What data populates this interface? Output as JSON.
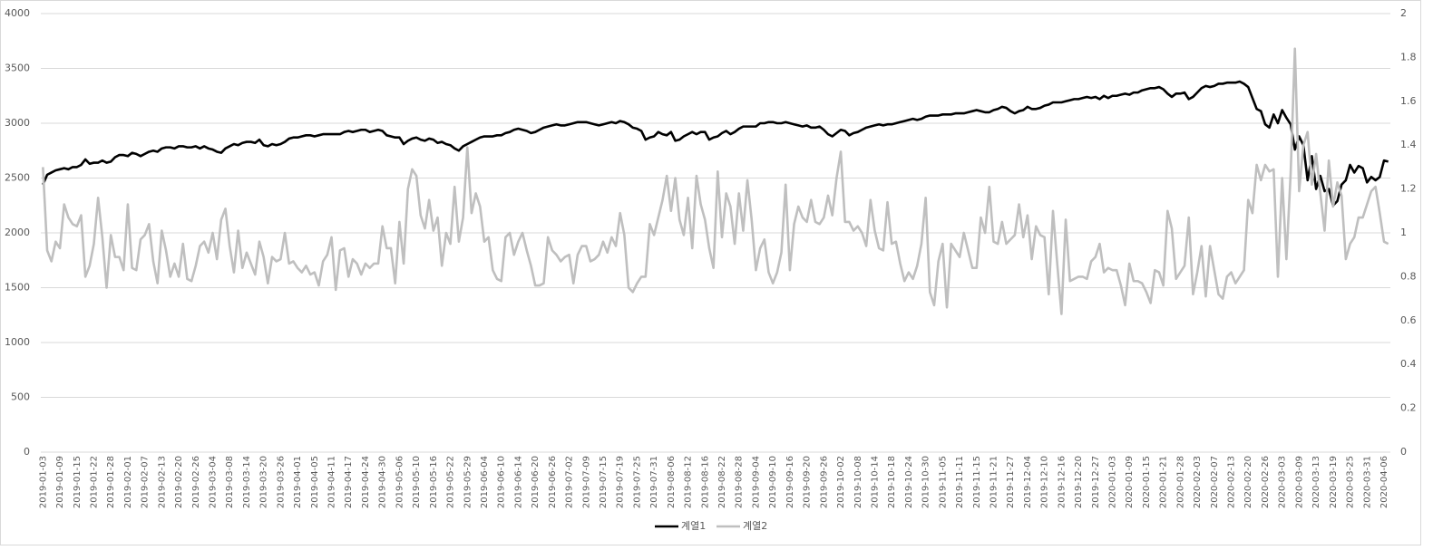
{
  "chart_data": {
    "type": "line",
    "categories": [
      "2019-01-03",
      null,
      null,
      null,
      "2019-01-09",
      null,
      null,
      null,
      "2019-01-15",
      null,
      null,
      null,
      "2019-01-22",
      null,
      null,
      null,
      "2019-01-28",
      null,
      null,
      null,
      "2019-02-01",
      null,
      null,
      null,
      "2019-02-07",
      null,
      null,
      null,
      "2019-02-13",
      null,
      null,
      null,
      "2019-02-20",
      null,
      null,
      null,
      "2019-02-26",
      null,
      null,
      null,
      "2019-03-04",
      null,
      null,
      null,
      "2019-03-08",
      null,
      null,
      null,
      "2019-03-14",
      null,
      null,
      null,
      "2019-03-20",
      null,
      null,
      null,
      "2019-03-26",
      null,
      null,
      null,
      "2019-04-01",
      null,
      null,
      null,
      "2019-04-05",
      null,
      null,
      null,
      "2019-04-11",
      null,
      null,
      null,
      "2019-04-17",
      null,
      null,
      null,
      "2019-04-24",
      null,
      null,
      null,
      "2019-04-30",
      null,
      null,
      null,
      "2019-05-06",
      null,
      null,
      null,
      "2019-05-10",
      null,
      null,
      null,
      "2019-05-16",
      null,
      null,
      null,
      "2019-05-22",
      null,
      null,
      null,
      "2019-05-29",
      null,
      null,
      null,
      "2019-06-04",
      null,
      null,
      null,
      "2019-06-10",
      null,
      null,
      null,
      "2019-06-14",
      null,
      null,
      null,
      "2019-06-20",
      null,
      null,
      null,
      "2019-06-26",
      null,
      null,
      null,
      "2019-07-02",
      null,
      null,
      null,
      "2019-07-09",
      null,
      null,
      null,
      "2019-07-15",
      null,
      null,
      null,
      "2019-07-19",
      null,
      null,
      null,
      "2019-07-25",
      null,
      null,
      null,
      "2019-07-31",
      null,
      null,
      null,
      "2019-08-06",
      null,
      null,
      null,
      "2019-08-12",
      null,
      null,
      null,
      "2019-08-16",
      null,
      null,
      null,
      "2019-08-22",
      null,
      null,
      null,
      "2019-08-28",
      null,
      null,
      null,
      "2019-09-04",
      null,
      null,
      null,
      "2019-09-10",
      null,
      null,
      null,
      "2019-09-16",
      null,
      null,
      null,
      "2019-09-20",
      null,
      null,
      null,
      "2019-09-26",
      null,
      null,
      null,
      "2019-10-02",
      null,
      null,
      null,
      "2019-10-08",
      null,
      null,
      null,
      "2019-10-14",
      null,
      null,
      null,
      "2019-10-18",
      null,
      null,
      null,
      "2019-10-24",
      null,
      null,
      null,
      "2019-10-30",
      null,
      null,
      null,
      "2019-11-05",
      null,
      null,
      null,
      "2019-11-11",
      null,
      null,
      null,
      "2019-11-15",
      null,
      null,
      null,
      "2019-11-21",
      null,
      null,
      null,
      "2019-11-27",
      null,
      null,
      null,
      "2019-12-04",
      null,
      null,
      null,
      "2019-12-10",
      null,
      null,
      null,
      "2019-12-16",
      null,
      null,
      null,
      "2019-12-20",
      null,
      null,
      null,
      "2019-12-27",
      null,
      null,
      null,
      "2020-01-03",
      null,
      null,
      null,
      "2020-01-09",
      null,
      null,
      null,
      "2020-01-15",
      null,
      null,
      null,
      "2020-01-21",
      null,
      null,
      null,
      "2020-01-28",
      null,
      null,
      null,
      "2020-02-03",
      null,
      null,
      null,
      "2020-02-07",
      null,
      null,
      null,
      "2020-02-13",
      null,
      null,
      null,
      "2020-02-20",
      null,
      null,
      null,
      "2020-02-26",
      null,
      null,
      null,
      "2020-03-03",
      null,
      null,
      null,
      "2020-03-09",
      null,
      null,
      null,
      "2020-03-13",
      null,
      null,
      null,
      "2020-03-19",
      null,
      null,
      null,
      "2020-03-25",
      null,
      null,
      null,
      "2020-03-31",
      null,
      null,
      null,
      "2020-04-06",
      null
    ],
    "series": [
      {
        "name": "계열1",
        "color": "#000000",
        "values": [
          2440,
          2530,
          2550,
          2570,
          2580,
          2590,
          2580,
          2600,
          2600,
          2620,
          2670,
          2630,
          2640,
          2640,
          2660,
          2640,
          2650,
          2690,
          2710,
          2710,
          2700,
          2730,
          2720,
          2700,
          2720,
          2740,
          2750,
          2740,
          2770,
          2780,
          2780,
          2770,
          2790,
          2790,
          2780,
          2780,
          2790,
          2770,
          2790,
          2770,
          2760,
          2740,
          2730,
          2770,
          2790,
          2810,
          2800,
          2820,
          2830,
          2830,
          2820,
          2850,
          2800,
          2790,
          2810,
          2800,
          2810,
          2830,
          2860,
          2870,
          2870,
          2880,
          2890,
          2890,
          2880,
          2890,
          2900,
          2900,
          2900,
          2900,
          2900,
          2920,
          2930,
          2920,
          2930,
          2940,
          2940,
          2920,
          2930,
          2940,
          2930,
          2890,
          2880,
          2870,
          2870,
          2810,
          2840,
          2860,
          2870,
          2850,
          2840,
          2860,
          2850,
          2820,
          2830,
          2810,
          2800,
          2770,
          2750,
          2790,
          2810,
          2830,
          2850,
          2870,
          2880,
          2880,
          2880,
          2890,
          2890,
          2910,
          2920,
          2940,
          2950,
          2940,
          2930,
          2910,
          2920,
          2940,
          2960,
          2970,
          2980,
          2990,
          2980,
          2980,
          2990,
          3000,
          3010,
          3010,
          3010,
          3000,
          2990,
          2980,
          2990,
          3000,
          3010,
          3000,
          3020,
          3010,
          2990,
          2960,
          2950,
          2930,
          2850,
          2870,
          2880,
          2920,
          2900,
          2890,
          2920,
          2840,
          2850,
          2880,
          2900,
          2920,
          2900,
          2920,
          2920,
          2850,
          2870,
          2880,
          2910,
          2930,
          2900,
          2920,
          2950,
          2970,
          2970,
          2970,
          2970,
          3000,
          3000,
          3010,
          3010,
          3000,
          3000,
          3010,
          3000,
          2990,
          2980,
          2970,
          2980,
          2960,
          2960,
          2970,
          2940,
          2900,
          2880,
          2910,
          2940,
          2930,
          2890,
          2910,
          2920,
          2940,
          2960,
          2970,
          2980,
          2990,
          2980,
          2990,
          2990,
          3000,
          3010,
          3020,
          3030,
          3040,
          3030,
          3040,
          3060,
          3070,
          3070,
          3070,
          3080,
          3080,
          3080,
          3090,
          3090,
          3090,
          3100,
          3110,
          3120,
          3110,
          3100,
          3100,
          3120,
          3130,
          3150,
          3140,
          3110,
          3090,
          3110,
          3120,
          3150,
          3130,
          3130,
          3140,
          3160,
          3170,
          3190,
          3190,
          3190,
          3200,
          3210,
          3220,
          3220,
          3230,
          3240,
          3230,
          3240,
          3220,
          3250,
          3230,
          3250,
          3250,
          3260,
          3270,
          3260,
          3280,
          3280,
          3300,
          3310,
          3320,
          3320,
          3330,
          3310,
          3270,
          3240,
          3270,
          3270,
          3280,
          3220,
          3240,
          3280,
          3320,
          3340,
          3330,
          3340,
          3360,
          3360,
          3370,
          3370,
          3370,
          3380,
          3360,
          3330,
          3230,
          3130,
          3110,
          2990,
          2960,
          3080,
          3000,
          3120,
          3050,
          2990,
          2760,
          2880,
          2800,
          2480,
          2700,
          2400,
          2520,
          2380,
          2400,
          2250,
          2290,
          2440,
          2480,
          2620,
          2550,
          2610,
          2590,
          2460,
          2510,
          2480,
          2510,
          2660,
          2650
        ]
      },
      {
        "name": "계열2",
        "color": "#bfbfbf",
        "axis": "y2",
        "values": [
          1.3,
          0.92,
          0.87,
          0.96,
          0.93,
          1.13,
          1.07,
          1.04,
          1.03,
          1.08,
          0.8,
          0.85,
          0.95,
          1.16,
          0.98,
          0.75,
          0.99,
          0.89,
          0.89,
          0.83,
          1.13,
          0.84,
          0.83,
          0.97,
          0.99,
          1.04,
          0.87,
          0.77,
          1.01,
          0.92,
          0.8,
          0.86,
          0.8,
          0.95,
          0.79,
          0.78,
          0.85,
          0.94,
          0.96,
          0.91,
          1.0,
          0.88,
          1.06,
          1.11,
          0.94,
          0.82,
          1.01,
          0.84,
          0.91,
          0.86,
          0.81,
          0.96,
          0.89,
          0.77,
          0.89,
          0.87,
          0.88,
          1.0,
          0.86,
          0.87,
          0.84,
          0.82,
          0.85,
          0.81,
          0.82,
          0.76,
          0.87,
          0.9,
          0.98,
          0.74,
          0.92,
          0.93,
          0.8,
          0.88,
          0.86,
          0.81,
          0.86,
          0.84,
          0.86,
          0.86,
          1.03,
          0.93,
          0.93,
          0.77,
          1.05,
          0.86,
          1.2,
          1.29,
          1.26,
          1.08,
          1.02,
          1.15,
          1.01,
          1.07,
          0.85,
          1.0,
          0.95,
          1.21,
          0.96,
          1.07,
          1.39,
          1.09,
          1.18,
          1.12,
          0.96,
          0.98,
          0.83,
          0.79,
          0.78,
          0.98,
          1.0,
          0.9,
          0.96,
          1.0,
          0.92,
          0.85,
          0.76,
          0.76,
          0.77,
          0.98,
          0.92,
          0.9,
          0.87,
          0.89,
          0.9,
          0.77,
          0.9,
          0.94,
          0.94,
          0.87,
          0.88,
          0.9,
          0.96,
          0.91,
          0.98,
          0.94,
          1.09,
          0.99,
          0.75,
          0.73,
          0.77,
          0.8,
          0.8,
          1.04,
          0.99,
          1.07,
          1.15,
          1.26,
          1.1,
          1.25,
          1.06,
          0.99,
          1.16,
          0.93,
          1.26,
          1.13,
          1.06,
          0.93,
          0.84,
          1.28,
          0.98,
          1.18,
          1.12,
          0.95,
          1.18,
          1.01,
          1.24,
          1.06,
          0.83,
          0.93,
          0.97,
          0.82,
          0.77,
          0.82,
          0.91,
          1.22,
          0.83,
          1.04,
          1.12,
          1.07,
          1.05,
          1.15,
          1.05,
          1.04,
          1.07,
          1.17,
          1.08,
          1.25,
          1.37,
          1.05,
          1.05,
          1.01,
          1.03,
          1.0,
          0.94,
          1.15,
          1.01,
          0.93,
          0.92,
          1.14,
          0.95,
          0.96,
          0.86,
          0.78,
          0.82,
          0.79,
          0.85,
          0.95,
          1.16,
          0.73,
          0.67,
          0.87,
          0.95,
          0.66,
          0.95,
          0.92,
          0.89,
          1.0,
          0.92,
          0.84,
          0.84,
          1.07,
          1.0,
          1.21,
          0.96,
          0.95,
          1.05,
          0.95,
          0.97,
          0.99,
          1.13,
          0.98,
          1.08,
          0.88,
          1.03,
          0.99,
          0.98,
          0.72,
          1.1,
          0.86,
          0.63,
          1.06,
          0.78,
          0.79,
          0.8,
          0.8,
          0.79,
          0.87,
          0.89,
          0.95,
          0.82,
          0.84,
          0.83,
          0.83,
          0.76,
          0.67,
          0.86,
          0.78,
          0.78,
          0.77,
          0.73,
          0.68,
          0.83,
          0.82,
          0.76,
          1.1,
          1.02,
          0.79,
          0.82,
          0.85,
          1.07,
          0.72,
          0.82,
          0.94,
          0.71,
          0.94,
          0.83,
          0.72,
          0.7,
          0.8,
          0.82,
          0.77,
          0.8,
          0.83,
          1.15,
          1.09,
          1.31,
          1.24,
          1.31,
          1.28,
          1.29,
          0.8,
          1.25,
          0.88,
          1.27,
          1.84,
          1.19,
          1.4,
          1.46,
          1.22,
          1.36,
          1.18,
          1.01,
          1.33,
          1.12,
          1.23,
          1.17,
          0.88,
          0.95,
          0.98,
          1.07,
          1.07,
          1.13,
          1.19,
          1.21,
          1.09,
          0.96,
          0.95
        ]
      }
    ],
    "ylim": [
      0,
      4000
    ],
    "yticks": [
      0,
      500,
      1000,
      1500,
      2000,
      2500,
      3000,
      3500,
      4000
    ],
    "y2lim": [
      0,
      2
    ],
    "y2ticks": [
      0,
      0.2,
      0.4,
      0.6,
      0.8,
      1,
      1.2,
      1.4,
      1.6,
      1.8,
      2
    ],
    "grid": true,
    "legend": "bottom"
  }
}
